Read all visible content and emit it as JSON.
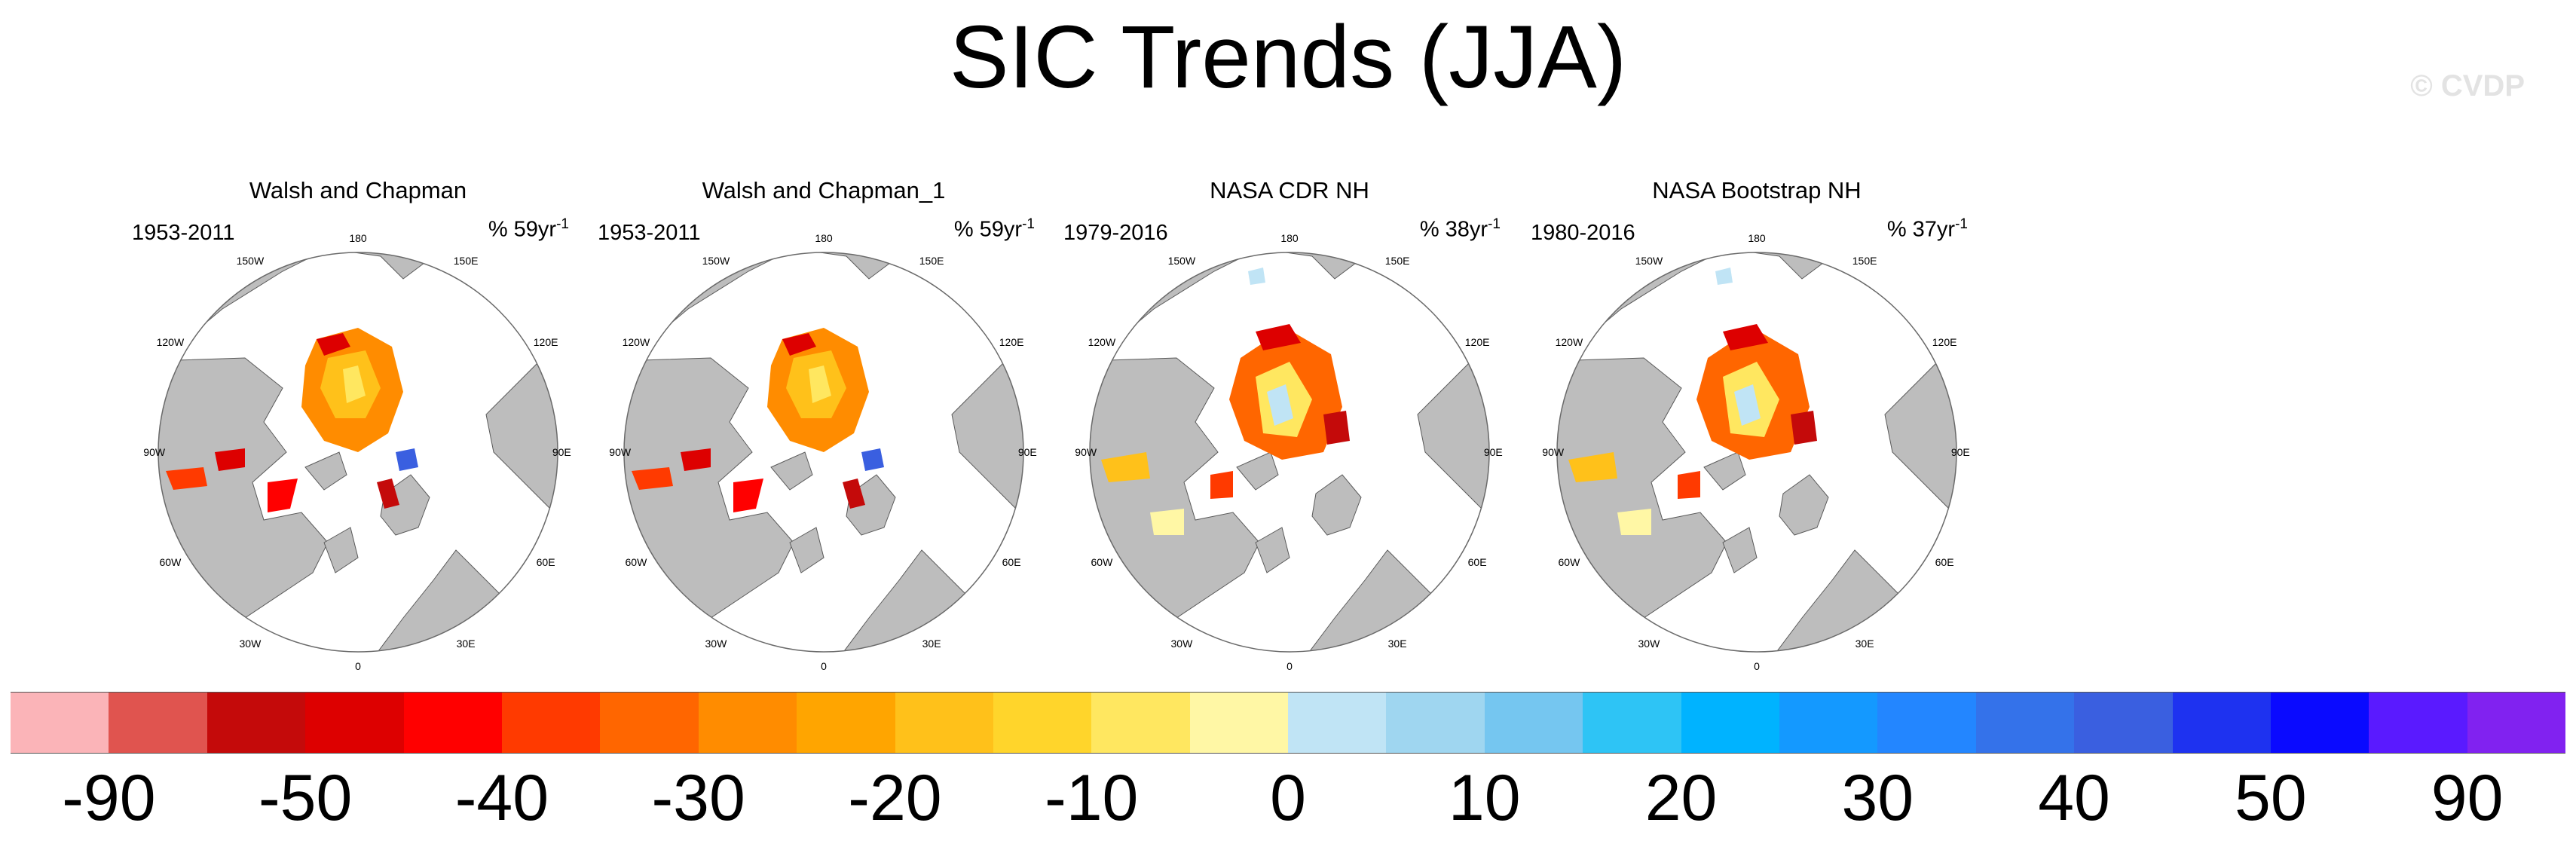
{
  "title": "SIC Trends (JJA)",
  "watermark": "© CVDP",
  "panels": [
    {
      "title": "Walsh and Chapman",
      "years": "1953-2011",
      "rate": "% 59yr",
      "rate_sup": "-1",
      "style": "wc"
    },
    {
      "title": "Walsh and Chapman_1",
      "years": "1953-2011",
      "rate": "% 59yr",
      "rate_sup": "-1",
      "style": "wc"
    },
    {
      "title": "NASA CDR NH",
      "years": "1979-2016",
      "rate": "% 38yr",
      "rate_sup": "-1",
      "style": "nasa"
    },
    {
      "title": "NASA Bootstrap NH",
      "years": "1980-2016",
      "rate": "% 37yr",
      "rate_sup": "-1",
      "style": "nasa"
    }
  ],
  "longitude_labels": [
    "180",
    "150W",
    "150E",
    "120W",
    "120E",
    "90W",
    "90E",
    "60W",
    "60E",
    "30W",
    "30E",
    "0"
  ],
  "colorbar": {
    "colors": [
      "#fbb4b8",
      "#e0544f",
      "#c40a0a",
      "#dd0000",
      "#ff0000",
      "#ff3a00",
      "#ff6600",
      "#ff8c00",
      "#ffa500",
      "#ffc11a",
      "#ffd52b",
      "#ffe760",
      "#fff7a5",
      "#c0e4f5",
      "#9fd6f0",
      "#75c6f0",
      "#2ec4f5",
      "#00b3ff",
      "#1499ff",
      "#2386ff",
      "#3472ea",
      "#3a5fe0",
      "#1e32f0",
      "#0a0aff",
      "#5a1aff",
      "#8122f0"
    ],
    "labels": [
      "-90",
      "-50",
      "-40",
      "-30",
      "-20",
      "-10",
      "0",
      "10",
      "20",
      "30",
      "40",
      "50",
      "90"
    ]
  }
}
